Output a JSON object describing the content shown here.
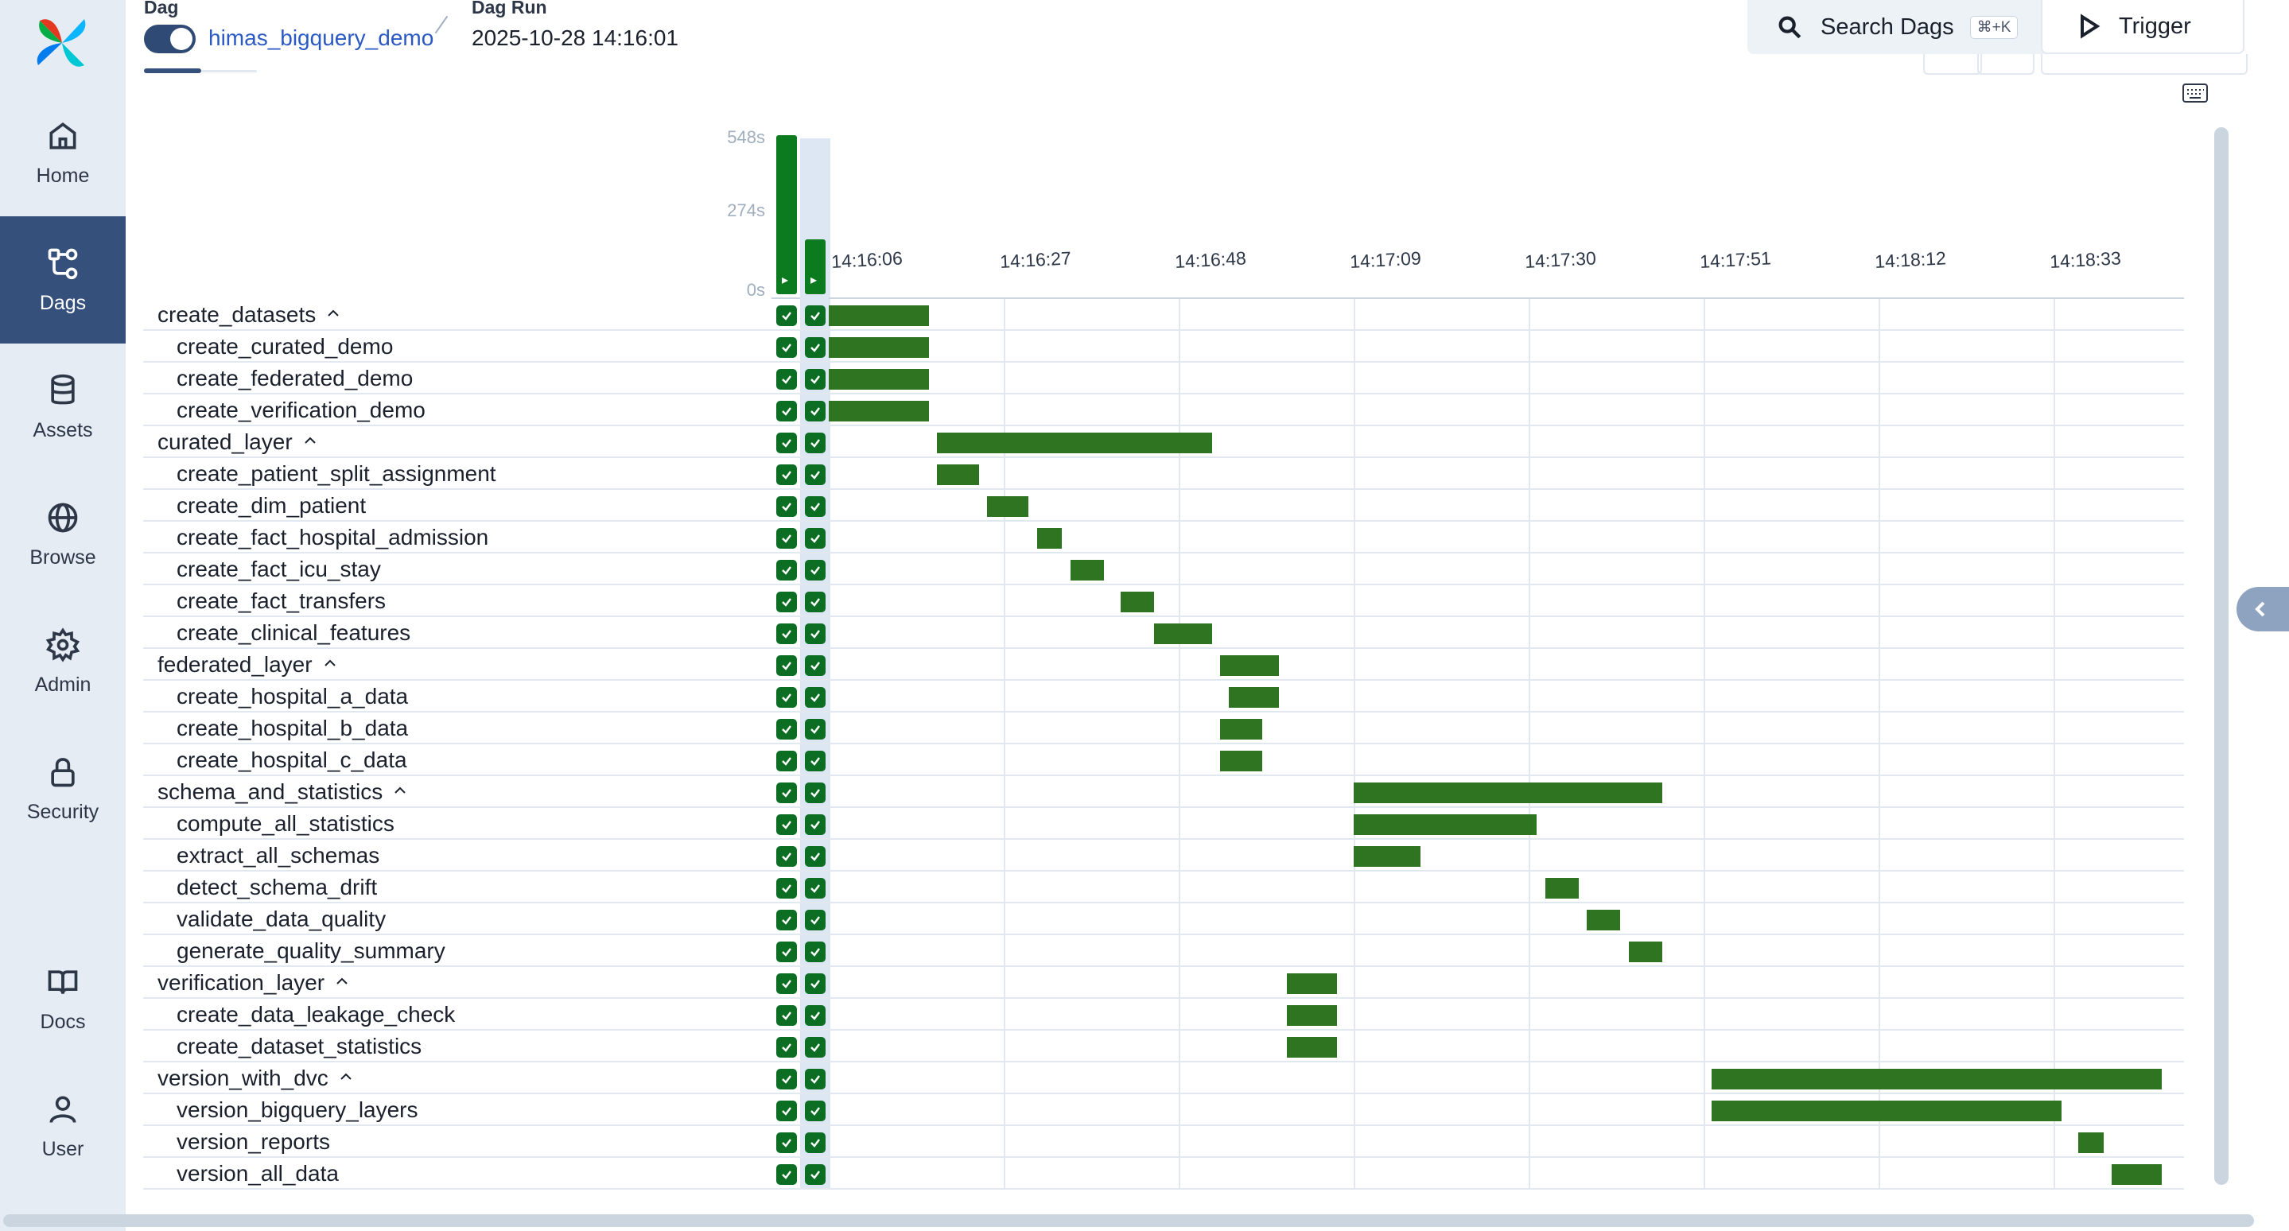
{
  "sidebar": {
    "items": [
      {
        "label": "Home",
        "icon": "home-icon"
      },
      {
        "label": "Dags",
        "icon": "dags-icon",
        "active": true
      },
      {
        "label": "Assets",
        "icon": "database-icon"
      },
      {
        "label": "Browse",
        "icon": "globe-icon"
      },
      {
        "label": "Admin",
        "icon": "gear-icon"
      },
      {
        "label": "Security",
        "icon": "lock-icon"
      },
      {
        "label": "Docs",
        "icon": "book-icon"
      },
      {
        "label": "User",
        "icon": "user-icon"
      }
    ]
  },
  "header": {
    "dag_label": "Dag",
    "dag_name": "himas_bigquery_demo",
    "dag_enabled": true,
    "run_label": "Dag Run",
    "run_time": "2025-10-28 14:16:01",
    "search_label": "Search Dags",
    "search_shortcut": "⌘+K",
    "trigger_label": "Trigger"
  },
  "gantt": {
    "duration_axis": [
      "548s",
      "274s",
      "0s"
    ],
    "run_durations_s": [
      548,
      190
    ],
    "time_ticks": [
      "14:16:06",
      "14:16:27",
      "14:16:48",
      "14:17:09",
      "14:17:30",
      "14:17:51",
      "14:18:12",
      "14:18:33"
    ],
    "status_color": "#0c6e22",
    "bar_color": "#2f7420",
    "tasks": [
      {
        "name": "create_datasets",
        "group": true,
        "start": "14:16:06",
        "end": "14:16:18"
      },
      {
        "name": "create_curated_demo",
        "group": false,
        "start": "14:16:06",
        "end": "14:16:18"
      },
      {
        "name": "create_federated_demo",
        "group": false,
        "start": "14:16:06",
        "end": "14:16:18"
      },
      {
        "name": "create_verification_demo",
        "group": false,
        "start": "14:16:06",
        "end": "14:16:18"
      },
      {
        "name": "curated_layer",
        "group": true,
        "start": "14:16:19",
        "end": "14:16:52"
      },
      {
        "name": "create_patient_split_assignment",
        "group": false,
        "start": "14:16:19",
        "end": "14:16:24"
      },
      {
        "name": "create_dim_patient",
        "group": false,
        "start": "14:16:25",
        "end": "14:16:30"
      },
      {
        "name": "create_fact_hospital_admission",
        "group": false,
        "start": "14:16:31",
        "end": "14:16:34"
      },
      {
        "name": "create_fact_icu_stay",
        "group": false,
        "start": "14:16:35",
        "end": "14:16:39"
      },
      {
        "name": "create_fact_transfers",
        "group": false,
        "start": "14:16:41",
        "end": "14:16:45"
      },
      {
        "name": "create_clinical_features",
        "group": false,
        "start": "14:16:45",
        "end": "14:16:52"
      },
      {
        "name": "federated_layer",
        "group": true,
        "start": "14:16:53",
        "end": "14:17:00"
      },
      {
        "name": "create_hospital_a_data",
        "group": false,
        "start": "14:16:54",
        "end": "14:17:00"
      },
      {
        "name": "create_hospital_b_data",
        "group": false,
        "start": "14:16:53",
        "end": "14:16:58"
      },
      {
        "name": "create_hospital_c_data",
        "group": false,
        "start": "14:16:53",
        "end": "14:16:58"
      },
      {
        "name": "schema_and_statistics",
        "group": true,
        "start": "14:17:09",
        "end": "14:17:46"
      },
      {
        "name": "compute_all_statistics",
        "group": false,
        "start": "14:17:09",
        "end": "14:17:31"
      },
      {
        "name": "extract_all_schemas",
        "group": false,
        "start": "14:17:09",
        "end": "14:17:17"
      },
      {
        "name": "detect_schema_drift",
        "group": false,
        "start": "14:17:32",
        "end": "14:17:36"
      },
      {
        "name": "validate_data_quality",
        "group": false,
        "start": "14:17:37",
        "end": "14:17:41"
      },
      {
        "name": "generate_quality_summary",
        "group": false,
        "start": "14:17:42",
        "end": "14:17:46"
      },
      {
        "name": "verification_layer",
        "group": true,
        "start": "14:17:01",
        "end": "14:17:07"
      },
      {
        "name": "create_data_leakage_check",
        "group": false,
        "start": "14:17:01",
        "end": "14:17:07"
      },
      {
        "name": "create_dataset_statistics",
        "group": false,
        "start": "14:17:01",
        "end": "14:17:07"
      },
      {
        "name": "version_with_dvc",
        "group": true,
        "start": "14:17:52",
        "end": "14:18:46"
      },
      {
        "name": "version_bigquery_layers",
        "group": false,
        "start": "14:17:52",
        "end": "14:18:34"
      },
      {
        "name": "version_reports",
        "group": false,
        "start": "14:18:36",
        "end": "14:18:39"
      },
      {
        "name": "version_all_data",
        "group": false,
        "start": "14:18:40",
        "end": "14:18:46"
      }
    ]
  }
}
